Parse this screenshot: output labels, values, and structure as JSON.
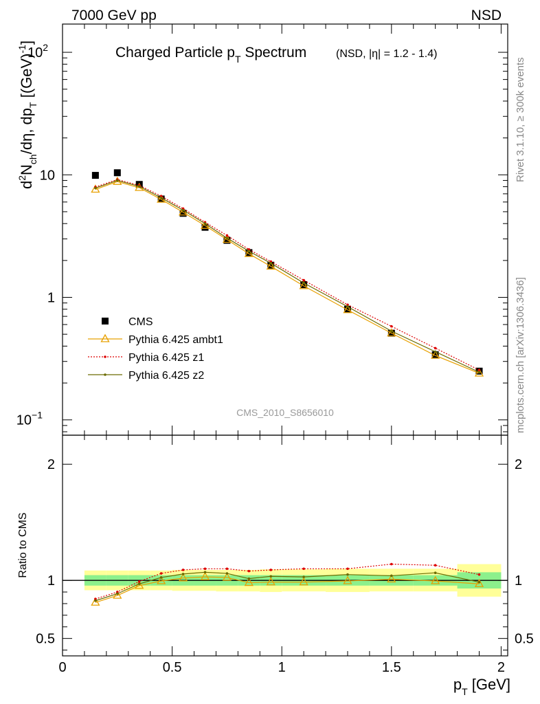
{
  "header": {
    "left": "7000 GeV pp",
    "right": "NSD"
  },
  "side_labels": {
    "rivet": "Rivet 3.1.10, ≥ 300k events",
    "mcplots": "mcplots.cern.ch [arXiv:1306.3436]"
  },
  "chart_data": [
    {
      "type": "scatter",
      "panel": "main",
      "title_main": "Charged Particle p",
      "title_sub": "T",
      "title_rest": " Spectrum",
      "title_extra": "(NSD, |η| = 1.2 - 1.4)",
      "ylabel": "d²N_ch/dη, dp_T [(GeV)⁻¹]",
      "yscale": "log",
      "ylim": [
        0.075,
        170
      ],
      "xlim": [
        0,
        2.03
      ],
      "yticks": [
        {
          "value": 0.1,
          "label": "10",
          "sup": "−1"
        },
        {
          "value": 1,
          "label": "1",
          "sup": ""
        },
        {
          "value": 10,
          "label": "10",
          "sup": ""
        },
        {
          "value": 100,
          "label": "10",
          "sup": "2"
        }
      ],
      "watermark": "CMS_2010_S8656010",
      "legend_position": "center-left",
      "x": [
        0.15,
        0.25,
        0.35,
        0.45,
        0.55,
        0.65,
        0.75,
        0.85,
        0.95,
        1.1,
        1.3,
        1.5,
        1.7,
        1.9
      ],
      "series": [
        {
          "name": "CMS",
          "color": "#000000",
          "marker": "square",
          "values": [
            9.9,
            10.4,
            8.35,
            6.35,
            4.85,
            3.73,
            2.92,
            2.32,
            1.83,
            1.27,
            0.8,
            0.51,
            0.34,
            0.25
          ]
        },
        {
          "name": "Pythia 6.425 ambt1",
          "color": "#e8a000",
          "marker": "triangle",
          "line": "solid",
          "values": [
            7.6,
            8.8,
            7.85,
            6.3,
            4.95,
            3.85,
            2.96,
            2.27,
            1.79,
            1.24,
            0.79,
            0.51,
            0.335,
            0.24
          ]
        },
        {
          "name": "Pythia 6.425 z1",
          "color": "#dd0000",
          "marker": "dot",
          "line": "dotted",
          "values": [
            7.95,
            9.15,
            8.2,
            6.7,
            5.3,
            4.1,
            3.2,
            2.46,
            1.96,
            1.38,
            0.87,
            0.58,
            0.385,
            0.255
          ]
        },
        {
          "name": "Pythia 6.425 z2",
          "color": "#6b6b00",
          "marker": "dot",
          "line": "solid",
          "values": [
            7.8,
            9.0,
            8.05,
            6.5,
            5.15,
            4.0,
            3.05,
            2.38,
            1.9,
            1.31,
            0.84,
            0.53,
            0.36,
            0.245
          ]
        }
      ]
    },
    {
      "type": "line",
      "panel": "ratio",
      "ylabel": "Ratio to CMS",
      "xlabel": "p_T [GeV]",
      "xlabel_main": "p",
      "xlabel_sub": "T",
      "xlabel_rest": " [GeV]",
      "ylim": [
        0.35,
        2.25
      ],
      "xlim": [
        0,
        2.03
      ],
      "yticks": [
        {
          "value": 0.5,
          "label": "0.5"
        },
        {
          "value": 1,
          "label": "1"
        },
        {
          "value": 2,
          "label": "2"
        }
      ],
      "xticks": [
        {
          "value": 0,
          "label": "0"
        },
        {
          "value": 0.5,
          "label": "0.5"
        },
        {
          "value": 1,
          "label": "1"
        },
        {
          "value": 1.5,
          "label": "1.5"
        },
        {
          "value": 2,
          "label": "2"
        }
      ],
      "bands": [
        {
          "x0": 0.1,
          "x1": 0.2,
          "yellow": [
            0.915,
            1.085
          ],
          "green": [
            0.955,
            1.045
          ]
        },
        {
          "x0": 0.2,
          "x1": 0.3,
          "yellow": [
            0.915,
            1.085
          ],
          "green": [
            0.955,
            1.045
          ]
        },
        {
          "x0": 0.3,
          "x1": 0.4,
          "yellow": [
            0.915,
            1.085
          ],
          "green": [
            0.955,
            1.045
          ]
        },
        {
          "x0": 0.4,
          "x1": 0.5,
          "yellow": [
            0.915,
            1.085
          ],
          "green": [
            0.955,
            1.045
          ]
        },
        {
          "x0": 0.5,
          "x1": 0.6,
          "yellow": [
            0.91,
            1.09
          ],
          "green": [
            0.955,
            1.045
          ]
        },
        {
          "x0": 0.6,
          "x1": 0.7,
          "yellow": [
            0.91,
            1.09
          ],
          "green": [
            0.955,
            1.045
          ]
        },
        {
          "x0": 0.7,
          "x1": 0.8,
          "yellow": [
            0.905,
            1.09
          ],
          "green": [
            0.955,
            1.045
          ]
        },
        {
          "x0": 0.8,
          "x1": 0.9,
          "yellow": [
            0.905,
            1.09
          ],
          "green": [
            0.955,
            1.045
          ]
        },
        {
          "x0": 0.9,
          "x1": 1.0,
          "yellow": [
            0.9,
            1.095
          ],
          "green": [
            0.955,
            1.045
          ]
        },
        {
          "x0": 1.0,
          "x1": 1.2,
          "yellow": [
            0.905,
            1.095
          ],
          "green": [
            0.955,
            1.045
          ]
        },
        {
          "x0": 1.2,
          "x1": 1.4,
          "yellow": [
            0.9,
            1.1
          ],
          "green": [
            0.955,
            1.045
          ]
        },
        {
          "x0": 1.4,
          "x1": 1.6,
          "yellow": [
            0.905,
            1.1
          ],
          "green": [
            0.955,
            1.045
          ]
        },
        {
          "x0": 1.6,
          "x1": 1.8,
          "yellow": [
            0.905,
            1.1
          ],
          "green": [
            0.955,
            1.045
          ]
        },
        {
          "x0": 1.8,
          "x1": 2.0,
          "yellow": [
            0.86,
            1.14
          ],
          "green": [
            0.93,
            1.07
          ]
        }
      ],
      "x": [
        0.15,
        0.25,
        0.35,
        0.45,
        0.55,
        0.65,
        0.75,
        0.85,
        0.95,
        1.1,
        1.3,
        1.5,
        1.7,
        1.9
      ],
      "series": [
        {
          "name": "Pythia 6.425 ambt1",
          "color": "#e8a000",
          "marker": "triangle",
          "line": "solid",
          "values": [
            0.81,
            0.87,
            0.955,
            0.995,
            1.02,
            1.03,
            1.025,
            0.98,
            0.985,
            0.985,
            0.995,
            1.01,
            0.995,
            0.97
          ]
        },
        {
          "name": "Pythia 6.425 z1",
          "color": "#dd0000",
          "marker": "dot",
          "line": "dotted",
          "values": [
            0.84,
            0.9,
            0.99,
            1.06,
            1.09,
            1.1,
            1.1,
            1.08,
            1.09,
            1.1,
            1.1,
            1.14,
            1.13,
            1.05
          ]
        },
        {
          "name": "Pythia 6.425 z2",
          "color": "#6b6b00",
          "marker": "dot",
          "line": "solid",
          "values": [
            0.825,
            0.885,
            0.97,
            1.025,
            1.055,
            1.07,
            1.06,
            1.015,
            1.035,
            1.03,
            1.05,
            1.04,
            1.065,
            0.985
          ]
        }
      ]
    }
  ]
}
